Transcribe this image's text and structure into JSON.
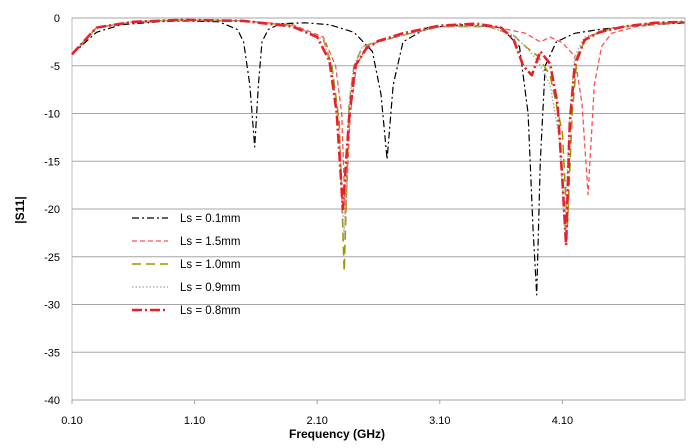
{
  "chart_data": {
    "type": "line",
    "title": "",
    "xlabel": "Frequency (GHz)",
    "ylabel": "|S11|",
    "xlim": [
      0.1,
      5.1
    ],
    "ylim": [
      -40,
      0
    ],
    "x_ticks": [
      "0.10",
      "1.10",
      "2.10",
      "3.10",
      "4.10"
    ],
    "y_ticks": [
      "0",
      "-5",
      "-10",
      "-15",
      "-20",
      "-25",
      "-30",
      "-35",
      "-40"
    ],
    "grid": "horizontal",
    "legend_position": "left",
    "series": [
      {
        "name": "Ls = 0.1mm",
        "color": "#000000",
        "dash": "dash-dot",
        "x": [
          0.1,
          0.3,
          0.5,
          0.8,
          1.0,
          1.3,
          1.45,
          1.5,
          1.55,
          1.59,
          1.62,
          1.65,
          1.7,
          1.8,
          2.0,
          2.2,
          2.4,
          2.55,
          2.62,
          2.67,
          2.72,
          2.8,
          3.0,
          3.3,
          3.6,
          3.75,
          3.82,
          3.86,
          3.89,
          3.92,
          3.96,
          4.05,
          4.2,
          4.4,
          4.7,
          5.1
        ],
        "y": [
          -3.8,
          -1.5,
          -0.7,
          -0.4,
          -0.3,
          -0.4,
          -1.2,
          -2.5,
          -7.0,
          -13.5,
          -7.0,
          -2.5,
          -1.2,
          -0.6,
          -0.5,
          -0.7,
          -1.5,
          -3.5,
          -8.0,
          -14.8,
          -7.0,
          -2.5,
          -1.0,
          -0.7,
          -1.0,
          -3.0,
          -10.0,
          -22.0,
          -29.0,
          -15.0,
          -5.0,
          -2.5,
          -1.6,
          -1.2,
          -0.8,
          -0.5
        ]
      },
      {
        "name": "Ls = 1.5mm",
        "color": "#ff5050",
        "dash": "dashed",
        "x": [
          0.1,
          0.3,
          0.6,
          1.0,
          1.5,
          1.9,
          2.15,
          2.25,
          2.3,
          2.33,
          2.37,
          2.42,
          2.5,
          2.6,
          2.8,
          3.1,
          3.5,
          3.8,
          3.92,
          4.0,
          4.1,
          4.2,
          4.26,
          4.31,
          4.36,
          4.42,
          4.5,
          4.7,
          5.1
        ],
        "y": [
          -3.8,
          -1.0,
          -0.4,
          -0.2,
          -0.3,
          -0.7,
          -2.0,
          -5.0,
          -10.0,
          -21.0,
          -10.0,
          -5.0,
          -3.0,
          -2.5,
          -1.8,
          -0.9,
          -0.8,
          -1.6,
          -2.5,
          -2.0,
          -2.6,
          -4.0,
          -9.0,
          -18.5,
          -7.0,
          -3.0,
          -1.6,
          -0.9,
          -0.4
        ]
      },
      {
        "name": "Ls = 1.0mm",
        "color": "#999900",
        "dash": "long-dash",
        "x": [
          0.1,
          0.3,
          0.6,
          1.0,
          1.5,
          1.9,
          2.15,
          2.22,
          2.28,
          2.32,
          2.36,
          2.4,
          2.47,
          2.6,
          2.8,
          3.1,
          3.5,
          3.7,
          3.8,
          3.9,
          4.0,
          4.1,
          4.14,
          4.18,
          4.22,
          4.3,
          4.5,
          4.8,
          5.1
        ],
        "y": [
          -3.8,
          -1.0,
          -0.4,
          -0.2,
          -0.3,
          -0.8,
          -2.2,
          -5.0,
          -11.0,
          -26.5,
          -9.0,
          -5.0,
          -3.0,
          -2.4,
          -1.8,
          -0.9,
          -0.9,
          -1.8,
          -3.0,
          -4.0,
          -6.0,
          -12.0,
          -22.0,
          -10.0,
          -4.0,
          -2.0,
          -1.1,
          -0.6,
          -0.4
        ]
      },
      {
        "name": "Ls = 0.9mm",
        "color": "#b0b0b0",
        "dash": "dotted",
        "x": [
          0.1,
          0.3,
          0.6,
          1.0,
          1.5,
          1.9,
          2.15,
          2.22,
          2.28,
          2.32,
          2.36,
          2.4,
          2.47,
          2.6,
          2.8,
          3.1,
          3.5,
          3.7,
          3.8,
          3.9,
          4.0,
          4.08,
          4.12,
          4.16,
          4.2,
          4.28,
          4.5,
          4.8,
          5.1
        ],
        "y": [
          -3.8,
          -1.0,
          -0.4,
          -0.2,
          -0.3,
          -0.8,
          -2.2,
          -5.5,
          -12.0,
          -23.0,
          -9.0,
          -5.0,
          -3.0,
          -2.4,
          -1.8,
          -0.9,
          -0.9,
          -1.8,
          -3.0,
          -4.5,
          -7.0,
          -13.0,
          -22.5,
          -10.0,
          -4.0,
          -2.0,
          -1.1,
          -0.6,
          -0.4
        ]
      },
      {
        "name": "Ls = 0.8mm",
        "color": "#e8202a",
        "dash": "dash-dot-thick",
        "x": [
          0.1,
          0.3,
          0.6,
          1.0,
          1.5,
          1.9,
          2.1,
          2.2,
          2.26,
          2.31,
          2.36,
          2.41,
          2.5,
          2.6,
          2.8,
          3.1,
          3.4,
          3.6,
          3.7,
          3.78,
          3.85,
          3.92,
          4.0,
          4.06,
          4.1,
          4.13,
          4.16,
          4.2,
          4.28,
          4.4,
          4.6,
          4.85,
          5.1
        ],
        "y": [
          -3.8,
          -1.0,
          -0.4,
          -0.2,
          -0.3,
          -0.9,
          -2.0,
          -4.5,
          -10.0,
          -20.0,
          -10.5,
          -5.0,
          -3.2,
          -2.4,
          -1.6,
          -0.8,
          -0.6,
          -1.0,
          -2.2,
          -5.0,
          -6.0,
          -3.5,
          -4.8,
          -9.0,
          -17.0,
          -23.8,
          -11.0,
          -5.0,
          -2.3,
          -1.5,
          -0.9,
          -0.5,
          -0.4
        ]
      }
    ]
  }
}
